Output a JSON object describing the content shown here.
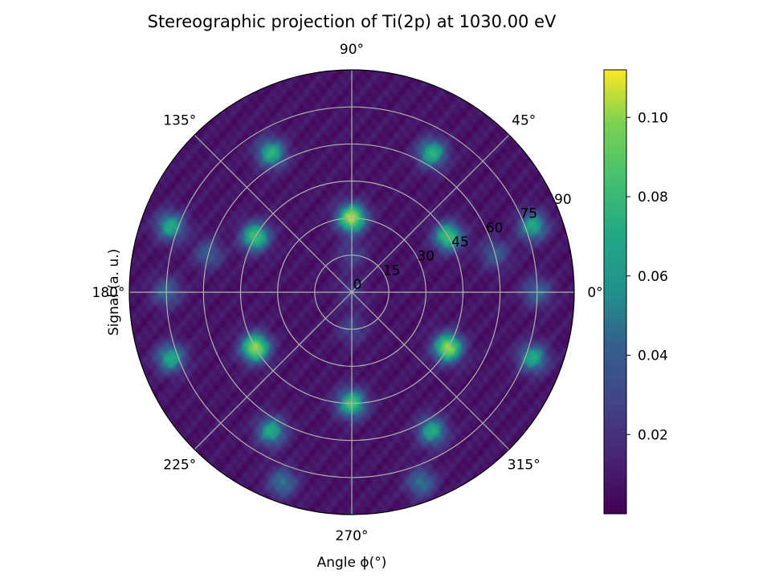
{
  "chart_data": {
    "type": "heatmap",
    "projection": "polar (stereographic)",
    "title": "Stereographic projection of Ti(2p) at 1030.00 eV",
    "xlabel": "Angle ϕ(°)",
    "ylabel": "Signal (a. u.)",
    "angular_ticks": [
      "0°",
      "45°",
      "90°",
      "135°",
      "180°",
      "225°",
      "270°",
      "315°"
    ],
    "angular_tick_values": [
      0,
      45,
      90,
      135,
      180,
      225,
      270,
      315
    ],
    "radial_ticks": [
      "0",
      "15",
      "30",
      "45",
      "60",
      "75",
      "90"
    ],
    "radial_tick_values": [
      0,
      15,
      30,
      45,
      60,
      75,
      90
    ],
    "radial_range": [
      0,
      90
    ],
    "grid": true,
    "colormap": "viridis",
    "colorbar": {
      "ticks": [
        "0.02",
        "0.04",
        "0.06",
        "0.08",
        "0.10"
      ],
      "tick_values": [
        0.02,
        0.04,
        0.06,
        0.08,
        0.1
      ],
      "range": [
        0.0,
        0.112
      ]
    },
    "background_level": 0.008,
    "hotspots": [
      {
        "phi": 90,
        "theta": 30,
        "intensity": 0.108
      },
      {
        "phi": 270,
        "theta": 45,
        "intensity": 0.085
      },
      {
        "phi": 210,
        "theta": 45,
        "intensity": 0.105
      },
      {
        "phi": 330,
        "theta": 45,
        "intensity": 0.105
      },
      {
        "phi": 150,
        "theta": 45,
        "intensity": 0.085
      },
      {
        "phi": 30,
        "theta": 45,
        "intensity": 0.085
      },
      {
        "phi": 60,
        "theta": 65,
        "intensity": 0.075
      },
      {
        "phi": 120,
        "theta": 65,
        "intensity": 0.075
      },
      {
        "phi": 240,
        "theta": 65,
        "intensity": 0.07
      },
      {
        "phi": 300,
        "theta": 65,
        "intensity": 0.07
      },
      {
        "phi": 0,
        "theta": 75,
        "intensity": 0.045
      },
      {
        "phi": 180,
        "theta": 75,
        "intensity": 0.045
      },
      {
        "phi": 20,
        "theta": 78,
        "intensity": 0.07
      },
      {
        "phi": 160,
        "theta": 78,
        "intensity": 0.07
      },
      {
        "phi": 200,
        "theta": 78,
        "intensity": 0.07
      },
      {
        "phi": 340,
        "theta": 78,
        "intensity": 0.07
      },
      {
        "phi": 250,
        "theta": 82,
        "intensity": 0.05
      },
      {
        "phi": 290,
        "theta": 82,
        "intensity": 0.05
      },
      {
        "phi": 165,
        "theta": 60,
        "intensity": 0.04
      },
      {
        "phi": 15,
        "theta": 60,
        "intensity": 0.04
      },
      {
        "phi": 270,
        "theta": 15,
        "intensity": 0.03
      },
      {
        "phi": 90,
        "theta": 15,
        "intensity": 0.028
      },
      {
        "phi": 0,
        "theta": 0,
        "intensity": 0.025
      }
    ]
  }
}
